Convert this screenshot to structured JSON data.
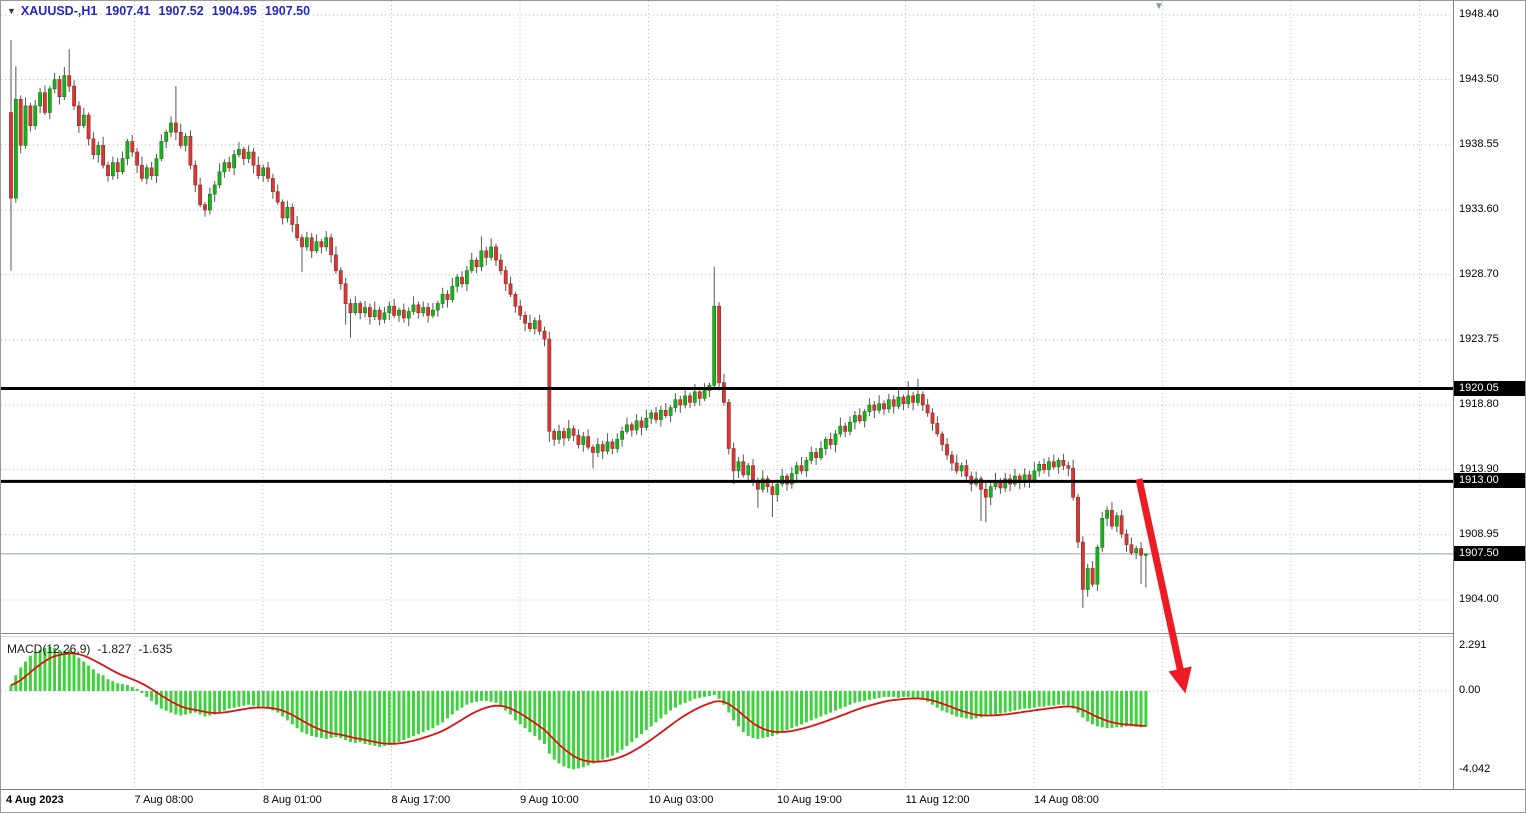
{
  "quote": {
    "symbol": "XAUUSD-,H1",
    "open": "1907.41",
    "high": "1907.52",
    "low": "1904.95",
    "close": "1907.50"
  },
  "colors": {
    "candle_up": "#1fae1f",
    "candle_up_border": "#0e7d0e",
    "candle_down": "#d23a38",
    "candle_down_border": "#a32424",
    "wick": "#555555",
    "grid": "#bcbcbc",
    "level_line": "#000000",
    "tag_bg": "#000000",
    "tag_text": "#ffffff",
    "current_price_line": "#93a5b1",
    "macd_histogram": "#3fd23f",
    "macd_signal": "#e01010",
    "arrow": "#ed1c24",
    "quote_text": "#2525c8",
    "axis_text": "#000000"
  },
  "chart_data": [
    {
      "type": "candlestick",
      "symbol_period": "XAUUSD-,H1",
      "timeframe": "H1",
      "first_open": 1941.0,
      "closes": [
        1934.5,
        1942.0,
        1938.5,
        1941.5,
        1940.0,
        1941.5,
        1942.5,
        1941.0,
        1942.8,
        1943.5,
        1942.2,
        1943.8,
        1943.0,
        1941.5,
        1940.0,
        1940.8,
        1939.0,
        1937.8,
        1938.5,
        1937.0,
        1936.2,
        1937.2,
        1936.5,
        1937.5,
        1938.8,
        1938.0,
        1937.0,
        1936.0,
        1936.8,
        1936.2,
        1937.5,
        1938.8,
        1939.5,
        1940.2,
        1939.5,
        1938.5,
        1939.2,
        1937.0,
        1935.5,
        1934.0,
        1933.6,
        1934.8,
        1935.5,
        1936.5,
        1937.2,
        1936.8,
        1937.8,
        1938.2,
        1937.5,
        1938.0,
        1937.0,
        1936.2,
        1936.8,
        1936.0,
        1935.0,
        1934.2,
        1933.0,
        1933.8,
        1932.5,
        1931.5,
        1930.8,
        1931.5,
        1930.5,
        1931.2,
        1930.8,
        1931.5,
        1930.2,
        1929.0,
        1928.0,
        1926.5,
        1925.8,
        1926.5,
        1925.8,
        1926.2,
        1925.5,
        1926.0,
        1925.3,
        1925.8,
        1926.3,
        1925.6,
        1926.0,
        1925.4,
        1925.9,
        1926.4,
        1925.8,
        1926.2,
        1925.6,
        1926.0,
        1926.5,
        1927.2,
        1926.8,
        1927.8,
        1928.5,
        1928.0,
        1929.0,
        1929.8,
        1929.3,
        1930.5,
        1930.0,
        1930.8,
        1929.8,
        1929.0,
        1928.0,
        1927.2,
        1926.3,
        1925.6,
        1925.0,
        1924.6,
        1925.2,
        1924.4,
        1923.8,
        1916.8,
        1916.2,
        1916.8,
        1916.3,
        1917.0,
        1916.5,
        1915.8,
        1916.4,
        1915.6,
        1915.2,
        1915.8,
        1915.3,
        1916.0,
        1915.5,
        1916.2,
        1916.8,
        1917.3,
        1916.9,
        1917.6,
        1917.1,
        1917.8,
        1918.2,
        1917.7,
        1918.4,
        1918.0,
        1918.6,
        1919.2,
        1918.8,
        1919.5,
        1919.0,
        1919.8,
        1919.3,
        1919.9,
        1920.3,
        1926.3,
        1920.5,
        1919.0,
        1915.5,
        1913.8,
        1914.5,
        1913.5,
        1914.2,
        1913.0,
        1912.4,
        1913.2,
        1912.6,
        1912.0,
        1912.8,
        1913.4,
        1912.8,
        1913.6,
        1914.2,
        1913.8,
        1914.6,
        1915.2,
        1914.8,
        1915.5,
        1916.2,
        1915.8,
        1916.6,
        1917.2,
        1916.8,
        1917.5,
        1918.0,
        1917.6,
        1918.3,
        1918.8,
        1918.4,
        1918.9,
        1918.5,
        1919.2,
        1918.7,
        1919.4,
        1918.9,
        1919.5,
        1919.0,
        1919.6,
        1918.8,
        1918.2,
        1917.4,
        1916.6,
        1915.8,
        1915.0,
        1914.4,
        1913.8,
        1914.2,
        1913.4,
        1912.8,
        1913.2,
        1912.4,
        1911.8,
        1912.6,
        1913.0,
        1912.5,
        1913.2,
        1912.8,
        1913.4,
        1912.9,
        1913.5,
        1913.1,
        1913.8,
        1914.3,
        1913.9,
        1914.5,
        1914.1,
        1914.6,
        1914.2,
        1914.0,
        1911.8,
        1908.4,
        1904.8,
        1906.4,
        1905.2,
        1908.0,
        1910.2,
        1910.8,
        1909.6,
        1910.4,
        1909.0,
        1908.2,
        1907.6,
        1907.9,
        1907.4,
        1907.5
      ],
      "high_overrides": {
        "0": 1946.5,
        "1": 1944.5,
        "12": 1945.8,
        "34": 1943.0,
        "97": 1931.6,
        "141": 1920.4,
        "145": 1929.3,
        "185": 1920.6,
        "187": 1920.8,
        "234": 1907.52
      },
      "low_overrides": {
        "0": 1929.0,
        "60": 1928.9,
        "69": 1924.9,
        "70": 1923.9,
        "111": 1916.0,
        "120": 1914.0,
        "149": 1912.8,
        "154": 1911.0,
        "157": 1910.3,
        "200": 1910.0,
        "201": 1909.9,
        "221": 1903.4,
        "233": 1905.2,
        "234": 1904.95
      },
      "wick_high_pattern": [
        0.2,
        0.5,
        0.3,
        0.65,
        0.25,
        0.45,
        0.35,
        0.55
      ],
      "wick_low_pattern": [
        0.3,
        0.55,
        0.2,
        0.5,
        0.35,
        0.6,
        0.25,
        0.45
      ],
      "y_axis_labels": [
        "1948.40",
        "1943.50",
        "1938.55",
        "1933.60",
        "1928.70",
        "1923.75",
        "1918.80",
        "1913.90",
        "1908.95",
        "1904.00"
      ],
      "y_axis_values": [
        1948.4,
        1943.5,
        1938.55,
        1933.6,
        1928.7,
        1923.75,
        1918.8,
        1913.9,
        1908.95,
        1904.0
      ],
      "levels": [
        {
          "value": 1920.05,
          "label": "1920.05"
        },
        {
          "value": 1913.0,
          "label": "1913.00"
        }
      ],
      "current_price": {
        "value": 1907.5,
        "label": "1907.50"
      },
      "x_labels": [
        "4 Aug 2023",
        "7 Aug 08:00",
        "8 Aug 01:00",
        "8 Aug 17:00",
        "9 Aug 10:00",
        "10 Aug 03:00",
        "10 Aug 19:00",
        "11 Aug 12:00",
        "14 Aug 08:00"
      ],
      "grid": true,
      "annotation": {
        "trend_arrow": "down-right red arrow from 1913 level into MACD panel"
      }
    },
    {
      "type": "macd",
      "label": "MACD(12,26,9)",
      "value_main": "-1.827",
      "value_signal": "-1.635",
      "signal_period": 9,
      "y_axis_labels": [
        "2.291",
        "0.00",
        "-4.042"
      ],
      "y_axis_values": [
        2.291,
        0,
        -4.042
      ],
      "histogram": [
        0.3,
        0.8,
        1.2,
        1.5,
        1.8,
        2.0,
        2.1,
        2.2,
        2.25,
        2.2,
        2.1,
        2.05,
        2.1,
        1.9,
        1.7,
        1.5,
        1.3,
        1.1,
        0.9,
        0.8,
        0.6,
        0.5,
        0.4,
        0.35,
        0.3,
        0.2,
        0.1,
        -0.1,
        -0.3,
        -0.5,
        -0.7,
        -0.9,
        -1.0,
        -1.1,
        -1.2,
        -1.25,
        -1.2,
        -1.15,
        -1.1,
        -1.2,
        -1.3,
        -1.25,
        -1.2,
        -1.1,
        -1.0,
        -0.9,
        -0.85,
        -0.8,
        -0.75,
        -0.7,
        -0.75,
        -0.8,
        -0.85,
        -0.9,
        -1.0,
        -1.1,
        -1.3,
        -1.5,
        -1.7,
        -1.9,
        -2.1,
        -2.2,
        -2.3,
        -2.35,
        -2.4,
        -2.45,
        -2.4,
        -2.35,
        -2.4,
        -2.5,
        -2.6,
        -2.65,
        -2.6,
        -2.7,
        -2.75,
        -2.8,
        -2.85,
        -2.8,
        -2.75,
        -2.7,
        -2.6,
        -2.5,
        -2.4,
        -2.3,
        -2.2,
        -2.1,
        -2.0,
        -1.9,
        -1.75,
        -1.6,
        -1.4,
        -1.2,
        -1.0,
        -0.85,
        -0.7,
        -0.6,
        -0.55,
        -0.5,
        -0.5,
        -0.55,
        -0.6,
        -0.8,
        -1.0,
        -1.2,
        -1.5,
        -1.7,
        -1.9,
        -2.1,
        -2.3,
        -2.5,
        -2.7,
        -3.2,
        -3.5,
        -3.7,
        -3.85,
        -3.95,
        -4.0,
        -3.95,
        -3.9,
        -3.8,
        -3.7,
        -3.6,
        -3.5,
        -3.4,
        -3.3,
        -3.15,
        -3.0,
        -2.8,
        -2.6,
        -2.4,
        -2.2,
        -2.0,
        -1.8,
        -1.6,
        -1.4,
        -1.2,
        -1.0,
        -0.85,
        -0.7,
        -0.6,
        -0.5,
        -0.4,
        -0.35,
        -0.3,
        -0.25,
        -0.2,
        -0.4,
        -0.7,
        -1.1,
        -1.5,
        -1.8,
        -2.1,
        -2.3,
        -2.4,
        -2.45,
        -2.4,
        -2.35,
        -2.3,
        -2.2,
        -2.1,
        -2.0,
        -1.9,
        -1.8,
        -1.7,
        -1.6,
        -1.5,
        -1.4,
        -1.3,
        -1.2,
        -1.1,
        -1.0,
        -0.9,
        -0.8,
        -0.7,
        -0.6,
        -0.55,
        -0.5,
        -0.45,
        -0.4,
        -0.35,
        -0.3,
        -0.3,
        -0.3,
        -0.35,
        -0.3,
        -0.3,
        -0.35,
        -0.4,
        -0.45,
        -0.55,
        -0.7,
        -0.85,
        -1.0,
        -1.1,
        -1.2,
        -1.3,
        -1.35,
        -1.4,
        -1.45,
        -1.4,
        -1.35,
        -1.3,
        -1.25,
        -1.2,
        -1.15,
        -1.1,
        -1.05,
        -1.0,
        -0.95,
        -0.9,
        -0.9,
        -0.85,
        -0.8,
        -0.8,
        -0.75,
        -0.75,
        -0.7,
        -0.7,
        -0.75,
        -0.9,
        -1.1,
        -1.35,
        -1.55,
        -1.7,
        -1.8,
        -1.85,
        -1.9,
        -1.9,
        -1.85,
        -1.85,
        -1.8,
        -1.8,
        -1.82,
        -1.85,
        -1.827
      ]
    }
  ]
}
